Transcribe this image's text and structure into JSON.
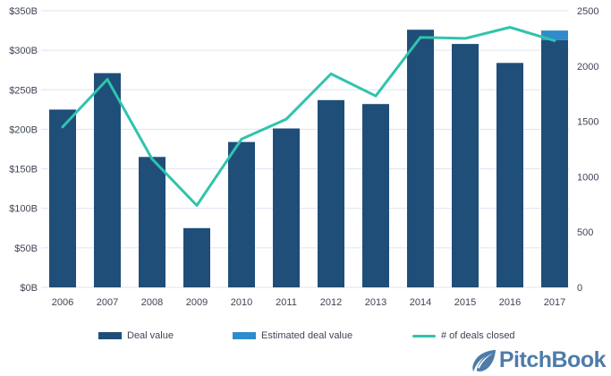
{
  "chart_data": {
    "type": "combo",
    "categories": [
      "2006",
      "2007",
      "2008",
      "2009",
      "2010",
      "2011",
      "2012",
      "2013",
      "2014",
      "2015",
      "2016",
      "2017"
    ],
    "series": [
      {
        "name": "Deal value",
        "type": "bar",
        "axis": "left",
        "values": [
          225,
          271,
          165,
          75,
          184,
          201,
          237,
          232,
          326,
          308,
          284,
          313
        ]
      },
      {
        "name": "Estimated deal value",
        "type": "bar-stacked-top",
        "axis": "left",
        "values": [
          0,
          0,
          0,
          0,
          0,
          0,
          0,
          0,
          0,
          0,
          0,
          12
        ]
      },
      {
        "name": "# of deals closed",
        "type": "line",
        "axis": "right",
        "values": [
          1450,
          1880,
          1160,
          740,
          1340,
          1520,
          1930,
          1730,
          2260,
          2250,
          2350,
          2230
        ]
      }
    ],
    "left_axis": {
      "tick_labels": [
        "$0B",
        "$50B",
        "$100B",
        "$150B",
        "$200B",
        "$250B",
        "$300B",
        "$350B"
      ],
      "tick_values": [
        0,
        50,
        100,
        150,
        200,
        250,
        300,
        350
      ],
      "max": 350
    },
    "right_axis": {
      "tick_labels": [
        "0",
        "500",
        "1000",
        "1500",
        "2000",
        "2500"
      ],
      "tick_values": [
        0,
        500,
        1000,
        1500,
        2000,
        2500
      ],
      "max": 2500
    },
    "grid": true,
    "legend_position": "bottom",
    "colors": {
      "bar": "#1F4E79",
      "estimated": "#2F8BCB",
      "line": "#30C3AE",
      "grid": "#DCE4F0",
      "axis_text": "#3E4455"
    }
  },
  "branding": {
    "logo_text": "PitchBook",
    "logo_color": "#4E7CA9"
  }
}
